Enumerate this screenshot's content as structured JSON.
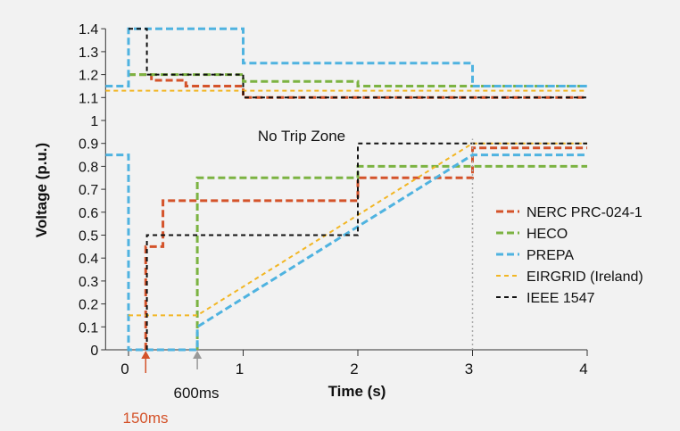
{
  "chart_data": {
    "type": "line",
    "xlabel": "Time (s)",
    "ylabel": "Voltage (p.u.)",
    "xlim": [
      -0.2,
      4
    ],
    "ylim": [
      0,
      1.4
    ],
    "x_ticks": [
      "0",
      "1",
      "2",
      "3",
      "4"
    ],
    "y_ticks": [
      "0",
      "0.1",
      "0.2",
      "0.3",
      "0.4",
      "0.5",
      "0.6",
      "0.7",
      "0.8",
      "0.9",
      "1",
      "1.1",
      "1.2",
      "1.3",
      "1.4"
    ],
    "legend_position": "right",
    "grid": false,
    "annotations": {
      "zone_label": "No Trip Zone",
      "marker_150": "150ms",
      "marker_600": "600ms"
    },
    "series": [
      {
        "name": "NERC PRC-024-1",
        "color": "#d4532a",
        "style": "dash-thick",
        "high": [
          [
            0,
            1.2
          ],
          [
            0.2,
            1.2
          ],
          [
            0.2,
            1.175
          ],
          [
            0.5,
            1.175
          ],
          [
            0.5,
            1.15
          ],
          [
            1.0,
            1.15
          ],
          [
            1.0,
            1.1
          ],
          [
            4,
            1.1
          ]
        ],
        "low": [
          [
            0.15,
            0
          ],
          [
            0.15,
            0.45
          ],
          [
            0.3,
            0.45
          ],
          [
            0.3,
            0.65
          ],
          [
            2.0,
            0.65
          ],
          [
            2.0,
            0.75
          ],
          [
            3.0,
            0.75
          ],
          [
            3.0,
            0.88
          ],
          [
            4,
            0.88
          ]
        ]
      },
      {
        "name": "HECO",
        "color": "#7cb342",
        "style": "dash-thick",
        "high": [
          [
            0,
            1.2
          ],
          [
            1.0,
            1.2
          ],
          [
            1.0,
            1.17
          ],
          [
            2.0,
            1.17
          ],
          [
            2.0,
            1.15
          ],
          [
            4,
            1.15
          ]
        ],
        "low": [
          [
            0.6,
            0
          ],
          [
            0.6,
            0.75
          ],
          [
            2.0,
            0.75
          ],
          [
            2.0,
            0.8
          ],
          [
            4,
            0.8
          ]
        ]
      },
      {
        "name": "PREPA",
        "color": "#4fb3e0",
        "style": "dash-thick",
        "high": [
          [
            -0.2,
            1.15
          ],
          [
            0,
            1.15
          ],
          [
            0,
            1.4
          ],
          [
            1.0,
            1.4
          ],
          [
            1.0,
            1.25
          ],
          [
            3.0,
            1.25
          ],
          [
            3.0,
            1.15
          ],
          [
            4,
            1.15
          ]
        ],
        "low": [
          [
            -0.2,
            0.85
          ],
          [
            0,
            0.85
          ],
          [
            0,
            0
          ],
          [
            0.6,
            0
          ],
          [
            0.6,
            0.1
          ],
          [
            3.0,
            0.85
          ],
          [
            4,
            0.85
          ]
        ]
      },
      {
        "name": "EIRGRID (Ireland)",
        "color": "#f2b624",
        "style": "dash-thin",
        "high": [
          [
            -0.2,
            1.13
          ],
          [
            4,
            1.13
          ]
        ],
        "low": [
          [
            0,
            0.15
          ],
          [
            0.6,
            0.15
          ],
          [
            3.0,
            0.9
          ],
          [
            4,
            0.9
          ]
        ]
      },
      {
        "name": "IEEE 1547",
        "color": "#111111",
        "style": "dash-thin",
        "high": [
          [
            0,
            1.4
          ],
          [
            0.16,
            1.4
          ],
          [
            0.16,
            1.2
          ],
          [
            1.0,
            1.2
          ],
          [
            1.0,
            1.1
          ],
          [
            4,
            1.1
          ]
        ],
        "low": [
          [
            0.16,
            0
          ],
          [
            0.16,
            0.5
          ],
          [
            2.0,
            0.5
          ],
          [
            2.0,
            0.9
          ],
          [
            4,
            0.9
          ]
        ]
      }
    ],
    "colors": {
      "vertical_marker": "#aaaaaa",
      "marker_150": "#d4532a",
      "marker_600": "#999999"
    }
  }
}
